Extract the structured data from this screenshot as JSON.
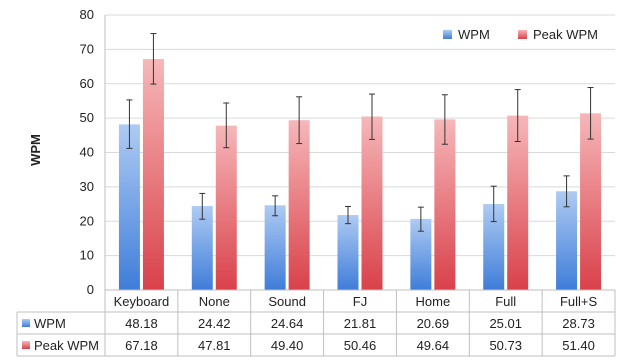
{
  "chart_data": {
    "type": "bar",
    "ylabel": "WPM",
    "ylim": [
      0,
      80
    ],
    "yticks": [
      0,
      10,
      20,
      30,
      40,
      50,
      60,
      70,
      80
    ],
    "grid": true,
    "legend_position": "top-right",
    "categories": [
      "Keyboard",
      "None",
      "Sound",
      "FJ",
      "Home",
      "Full",
      "Full+S"
    ],
    "series": [
      {
        "name": "WPM",
        "color": "#4A86DE",
        "values": [
          48.18,
          24.42,
          24.64,
          21.81,
          20.69,
          25.01,
          28.73
        ],
        "labels": [
          "48.18",
          "24.42",
          "24.64",
          "21.81",
          "20.69",
          "25.01",
          "28.73"
        ],
        "error_low": [
          41.2,
          20.6,
          21.6,
          19.3,
          17.1,
          19.9,
          24.2
        ],
        "error_high": [
          55.3,
          28.1,
          27.4,
          24.3,
          24.1,
          30.2,
          33.2
        ]
      },
      {
        "name": "Peak WPM",
        "color": "#E2545A",
        "values": [
          67.18,
          47.81,
          49.4,
          50.46,
          49.64,
          50.73,
          51.4
        ],
        "labels": [
          "67.18",
          "47.81",
          "49.40",
          "50.46",
          "49.64",
          "50.73",
          "51.40"
        ],
        "error_low": [
          59.9,
          41.4,
          42.6,
          43.8,
          42.4,
          43.2,
          43.9
        ],
        "error_high": [
          74.6,
          54.4,
          56.2,
          57.0,
          56.8,
          58.3,
          58.9
        ]
      }
    ]
  }
}
